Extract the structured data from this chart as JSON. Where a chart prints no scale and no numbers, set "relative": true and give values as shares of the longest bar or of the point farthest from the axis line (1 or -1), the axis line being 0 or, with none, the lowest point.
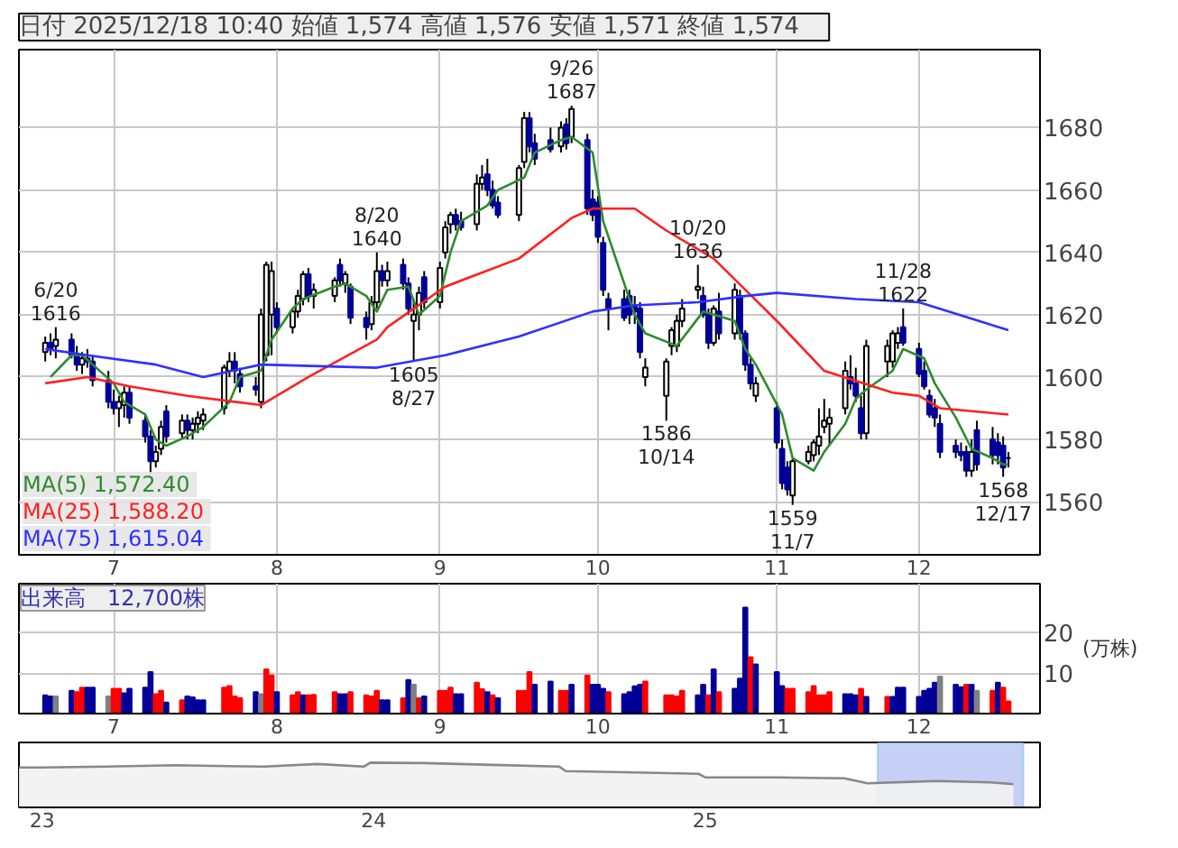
{
  "chart_data": [
    {
      "type": "candlestick",
      "title": "日付 2025/12/18 10:40  始値 1,574  高値 1,576  安値 1,571  終値 1,574",
      "x": [
        "2025-06-18",
        "2025-06-19",
        "2025-06-20",
        "2025-06-23",
        "2025-06-24",
        "2025-06-25",
        "2025-06-26",
        "2025-06-27",
        "2025-06-30",
        "2025-07-01",
        "2025-07-02",
        "2025-07-03",
        "2025-07-04",
        "2025-07-07",
        "2025-07-08",
        "2025-07-09",
        "2025-07-10",
        "2025-07-11",
        "2025-07-14",
        "2025-07-15",
        "2025-07-16",
        "2025-07-17",
        "2025-07-18",
        "2025-07-22",
        "2025-07-23",
        "2025-07-24",
        "2025-07-25",
        "2025-07-28",
        "2025-07-29",
        "2025-07-30",
        "2025-07-31",
        "2025-08-01",
        "2025-08-04",
        "2025-08-05",
        "2025-08-06",
        "2025-08-07",
        "2025-08-08",
        "2025-08-12",
        "2025-08-13",
        "2025-08-14",
        "2025-08-15",
        "2025-08-18",
        "2025-08-19",
        "2025-08-20",
        "2025-08-21",
        "2025-08-22",
        "2025-08-25",
        "2025-08-26",
        "2025-08-27",
        "2025-08-28",
        "2025-08-29",
        "2025-09-01",
        "2025-09-02",
        "2025-09-03",
        "2025-09-04",
        "2025-09-05",
        "2025-09-08",
        "2025-09-09",
        "2025-09-10",
        "2025-09-11",
        "2025-09-12",
        "2025-09-16",
        "2025-09-17",
        "2025-09-18",
        "2025-09-19",
        "2025-09-22",
        "2025-09-24",
        "2025-09-25",
        "2025-09-26",
        "2025-09-29",
        "2025-09-30",
        "2025-10-01",
        "2025-10-02",
        "2025-10-03",
        "2025-10-06",
        "2025-10-07",
        "2025-10-08",
        "2025-10-09",
        "2025-10-10",
        "2025-10-14",
        "2025-10-15",
        "2025-10-16",
        "2025-10-17",
        "2025-10-20",
        "2025-10-21",
        "2025-10-22",
        "2025-10-23",
        "2025-10-24",
        "2025-10-27",
        "2025-10-28",
        "2025-10-29",
        "2025-10-30",
        "2025-10-31",
        "2025-11-04",
        "2025-11-05",
        "2025-11-06",
        "2025-11-07",
        "2025-11-10",
        "2025-11-11",
        "2025-11-12",
        "2025-11-13",
        "2025-11-14",
        "2025-11-17",
        "2025-11-18",
        "2025-11-19",
        "2025-11-20",
        "2025-11-21",
        "2025-11-25",
        "2025-11-26",
        "2025-11-27",
        "2025-11-28",
        "2025-12-01",
        "2025-12-02",
        "2025-12-03",
        "2025-12-04",
        "2025-12-05",
        "2025-12-08",
        "2025-12-09",
        "2025-12-10",
        "2025-12-11",
        "2025-12-12",
        "2025-12-15",
        "2025-12-16",
        "2025-12-17",
        "2025-12-18"
      ],
      "ohlc": [
        [
          1608,
          1613,
          1605,
          1611
        ],
        [
          1611,
          1614,
          1607,
          1609
        ],
        [
          1610,
          1616,
          1606,
          1612
        ],
        [
          1612,
          1614,
          1606,
          1607
        ],
        [
          1607,
          1610,
          1602,
          1604
        ],
        [
          1604,
          1608,
          1601,
          1606
        ],
        [
          1606,
          1609,
          1603,
          1605
        ],
        [
          1605,
          1607,
          1597,
          1599
        ],
        [
          1599,
          1602,
          1590,
          1592
        ],
        [
          1592,
          1596,
          1588,
          1590
        ],
        [
          1590,
          1594,
          1584,
          1592
        ],
        [
          1591,
          1597,
          1587,
          1595
        ],
        [
          1595,
          1597,
          1585,
          1587
        ],
        [
          1586,
          1588,
          1579,
          1581
        ],
        [
          1581,
          1583,
          1569,
          1573
        ],
        [
          1573,
          1578,
          1571,
          1576
        ],
        [
          1577,
          1586,
          1575,
          1584
        ],
        [
          1589,
          1591,
          1579,
          1581
        ],
        [
          1582,
          1588,
          1580,
          1586
        ],
        [
          1586,
          1588,
          1580,
          1583
        ],
        [
          1583,
          1587,
          1580,
          1585
        ],
        [
          1585,
          1589,
          1582,
          1587
        ],
        [
          1586,
          1590,
          1583,
          1588
        ],
        [
          1590,
          1604,
          1588,
          1603
        ],
        [
          1602,
          1608,
          1600,
          1605
        ],
        [
          1605,
          1608,
          1598,
          1602
        ],
        [
          1601,
          1603,
          1595,
          1597
        ],
        [
          1597,
          1600,
          1594,
          1596
        ],
        [
          1592,
          1622,
          1590,
          1620
        ],
        [
          1607,
          1637,
          1605,
          1636
        ],
        [
          1620,
          1637,
          1607,
          1634
        ],
        [
          1622,
          1624,
          1614,
          1616
        ],
        [
          1616,
          1622,
          1614,
          1621
        ],
        [
          1621,
          1628,
          1619,
          1626
        ],
        [
          1625,
          1634,
          1623,
          1633
        ],
        [
          1633,
          1635,
          1624,
          1626
        ],
        [
          1626,
          1630,
          1622,
          1628
        ],
        [
          1626,
          1632,
          1624,
          1631
        ],
        [
          1636,
          1638,
          1629,
          1631
        ],
        [
          1630,
          1634,
          1627,
          1633
        ],
        [
          1629,
          1630,
          1617,
          1619
        ],
        [
          1619,
          1621,
          1612,
          1616
        ],
        [
          1617,
          1626,
          1615,
          1624
        ],
        [
          1624,
          1640,
          1622,
          1634
        ],
        [
          1634,
          1636,
          1629,
          1631
        ],
        [
          1631,
          1637,
          1629,
          1634
        ],
        [
          1636,
          1638,
          1628,
          1630
        ],
        [
          1630,
          1632,
          1620,
          1622
        ],
        [
          1618,
          1625,
          1605,
          1620
        ],
        [
          1620,
          1629,
          1615,
          1627
        ],
        [
          1632,
          1634,
          1622,
          1624
        ],
        [
          1624,
          1637,
          1622,
          1635
        ],
        [
          1640,
          1650,
          1638,
          1648
        ],
        [
          1649,
          1653,
          1646,
          1652
        ],
        [
          1652,
          1654,
          1647,
          1649
        ],
        [
          1650,
          1653,
          1647,
          1648
        ],
        [
          1649,
          1665,
          1647,
          1662
        ],
        [
          1662,
          1668,
          1660,
          1664
        ],
        [
          1665,
          1670,
          1658,
          1660
        ],
        [
          1660,
          1663,
          1654,
          1655
        ],
        [
          1656,
          1658,
          1651,
          1652
        ],
        [
          1652,
          1668,
          1650,
          1667
        ],
        [
          1669,
          1685,
          1667,
          1683
        ],
        [
          1683,
          1685,
          1672,
          1674
        ],
        [
          1675,
          1678,
          1668,
          1670
        ],
        [
          1676,
          1680,
          1672,
          1673
        ],
        [
          1674,
          1682,
          1672,
          1680
        ],
        [
          1681,
          1683,
          1673,
          1675
        ],
        [
          1677,
          1687,
          1675,
          1686
        ],
        [
          1676,
          1678,
          1652,
          1654
        ],
        [
          1657,
          1660,
          1650,
          1652
        ],
        [
          1656,
          1658,
          1643,
          1645
        ],
        [
          1643,
          1645,
          1626,
          1628
        ],
        [
          1625,
          1627,
          1615,
          1622
        ],
        [
          1625,
          1628,
          1618,
          1619
        ],
        [
          1626,
          1628,
          1617,
          1620
        ],
        [
          1623,
          1626,
          1617,
          1621
        ],
        [
          1622,
          1624,
          1606,
          1608
        ],
        [
          1600,
          1606,
          1597,
          1603
        ],
        [
          1594,
          1606,
          1586,
          1605
        ],
        [
          1610,
          1616,
          1607,
          1615
        ],
        [
          1610,
          1620,
          1608,
          1618
        ],
        [
          1618,
          1625,
          1616,
          1622
        ],
        [
          1628,
          1636,
          1625,
          1629
        ],
        [
          1626,
          1629,
          1619,
          1620
        ],
        [
          1620,
          1622,
          1609,
          1611
        ],
        [
          1611,
          1623,
          1610,
          1622
        ],
        [
          1621,
          1627,
          1612,
          1614
        ],
        [
          1614,
          1630,
          1612,
          1628
        ],
        [
          1626,
          1628,
          1612,
          1614
        ],
        [
          1614,
          1615,
          1602,
          1604
        ],
        [
          1604,
          1606,
          1596,
          1598
        ],
        [
          1594,
          1600,
          1592,
          1598
        ],
        [
          1590,
          1592,
          1577,
          1579
        ],
        [
          1577,
          1580,
          1564,
          1566
        ],
        [
          1571,
          1573,
          1562,
          1564
        ],
        [
          1562,
          1574,
          1559,
          1573
        ],
        [
          1573,
          1578,
          1572,
          1576
        ],
        [
          1575,
          1580,
          1573,
          1579
        ],
        [
          1578,
          1590,
          1575,
          1581
        ],
        [
          1584,
          1593,
          1582,
          1586
        ],
        [
          1585,
          1590,
          1578,
          1587
        ],
        [
          1590,
          1605,
          1588,
          1602
        ],
        [
          1600,
          1607,
          1596,
          1598
        ],
        [
          1598,
          1603,
          1592,
          1594
        ],
        [
          1590,
          1594,
          1580,
          1582
        ],
        [
          1582,
          1612,
          1580,
          1610
        ],
        [
          1605,
          1612,
          1600,
          1610
        ],
        [
          1605,
          1615,
          1603,
          1614
        ],
        [
          1611,
          1616,
          1609,
          1614
        ],
        [
          1616,
          1622,
          1610,
          1611
        ],
        [
          1609,
          1611,
          1600,
          1601
        ],
        [
          1602,
          1605,
          1596,
          1597
        ],
        [
          1594,
          1596,
          1587,
          1588
        ],
        [
          1590,
          1593,
          1584,
          1587
        ],
        [
          1585,
          1588,
          1574,
          1576
        ],
        [
          1578,
          1580,
          1574,
          1576
        ],
        [
          1576,
          1579,
          1573,
          1575
        ],
        [
          1576,
          1578,
          1568,
          1570
        ],
        [
          1570,
          1580,
          1568,
          1576
        ],
        [
          1583,
          1586,
          1570,
          1572
        ],
        [
          1580,
          1584,
          1572,
          1575
        ],
        [
          1579,
          1582,
          1572,
          1575
        ],
        [
          1578,
          1581,
          1568,
          1571
        ],
        [
          1574,
          1576,
          1571,
          1574
        ]
      ],
      "series": [
        {
          "type": "line",
          "name": "MA(5)  1,572.40",
          "color": "#2e8b2e",
          "x": [
            "2025-06-19",
            "2025-06-23",
            "2025-06-25",
            "2025-06-27",
            "2025-07-01",
            "2025-07-03",
            "2025-07-07",
            "2025-07-09",
            "2025-07-11",
            "2025-07-15",
            "2025-07-18",
            "2025-07-23",
            "2025-07-25",
            "2025-07-29",
            "2025-07-31",
            "2025-08-04",
            "2025-08-06",
            "2025-08-12",
            "2025-08-14",
            "2025-08-18",
            "2025-08-20",
            "2025-08-22",
            "2025-08-26",
            "2025-08-28",
            "2025-09-01",
            "2025-09-03",
            "2025-09-05",
            "2025-09-10",
            "2025-09-12",
            "2025-09-17",
            "2025-09-19",
            "2025-09-24",
            "2025-09-26",
            "2025-09-30",
            "2025-10-02",
            "2025-10-06",
            "2025-10-08",
            "2025-10-10",
            "2025-10-16",
            "2025-10-21",
            "2025-10-23",
            "2025-10-27",
            "2025-10-29",
            "2025-10-31",
            "2025-11-05",
            "2025-11-07",
            "2025-11-11",
            "2025-11-13",
            "2025-11-17",
            "2025-11-19",
            "2025-11-21",
            "2025-11-26",
            "2025-11-28",
            "2025-12-02",
            "2025-12-04",
            "2025-12-08",
            "2025-12-11",
            "2025-12-15",
            "2025-12-17",
            "2025-12-18"
          ],
          "values": [
            1600,
            1607,
            1607,
            1604,
            1598,
            1592,
            1588,
            1580,
            1578,
            1581,
            1584,
            1592,
            1600,
            1602,
            1612,
            1622,
            1625,
            1629,
            1630,
            1626,
            1621,
            1628,
            1629,
            1620,
            1626,
            1640,
            1650,
            1655,
            1660,
            1664,
            1672,
            1676,
            1677,
            1672,
            1650,
            1630,
            1620,
            1614,
            1610,
            1621,
            1620,
            1618,
            1609,
            1604,
            1588,
            1574,
            1570,
            1576,
            1585,
            1593,
            1596,
            1602,
            1609,
            1606,
            1598,
            1587,
            1577,
            1574,
            1572,
            1572
          ]
        },
        {
          "type": "line",
          "name": "MA(25)  1,588.20",
          "color": "#ff2020",
          "x": [
            "2025-06-18",
            "2025-06-26",
            "2025-07-04",
            "2025-07-15",
            "2025-07-29",
            "2025-08-07",
            "2025-08-20",
            "2025-08-22",
            "2025-09-02",
            "2025-09-16",
            "2025-09-26",
            "2025-09-30",
            "2025-10-08",
            "2025-10-14",
            "2025-10-23",
            "2025-10-29",
            "2025-11-04",
            "2025-11-13",
            "2025-11-26",
            "2025-12-01",
            "2025-12-05",
            "2025-12-18"
          ],
          "values": [
            1598,
            1600,
            1597,
            1594,
            1591,
            1600,
            1612,
            1616,
            1629,
            1638,
            1651,
            1654,
            1654,
            1647,
            1638,
            1628,
            1618,
            1602,
            1595,
            1594,
            1590,
            1588
          ]
        },
        {
          "type": "line",
          "name": "MA(75)  1,615.04",
          "color": "#3030ff",
          "x": [
            "2025-06-18",
            "2025-06-26",
            "2025-07-09",
            "2025-07-18",
            "2025-07-29",
            "2025-08-20",
            "2025-09-02",
            "2025-09-16",
            "2025-09-30",
            "2025-10-08",
            "2025-10-20",
            "2025-10-29",
            "2025-11-04",
            "2025-11-19",
            "2025-12-01",
            "2025-12-18"
          ],
          "values": [
            1609,
            1607,
            1604,
            1600,
            1604,
            1603,
            1607,
            1613,
            1621,
            1623,
            1624,
            1626,
            1627,
            1625,
            1624,
            1615
          ]
        }
      ],
      "annotations": [
        {
          "text": "6/20\n1616",
          "x": "2025-06-20",
          "y": 1616
        },
        {
          "text": "8/20\n1640",
          "x": "2025-08-20",
          "y": 1640
        },
        {
          "text": "1605\n8/27",
          "x": "2025-08-27",
          "y": 1605
        },
        {
          "text": "9/26\n1687",
          "x": "2025-09-26",
          "y": 1687
        },
        {
          "text": "1586\n10/14",
          "x": "2025-10-14",
          "y": 1586
        },
        {
          "text": "10/20\n1636",
          "x": "2025-10-20",
          "y": 1636
        },
        {
          "text": "1559\n11/7",
          "x": "2025-11-07",
          "y": 1559
        },
        {
          "text": "11/28\n1622",
          "x": "2025-11-28",
          "y": 1622
        },
        {
          "text": "1568\n12/17",
          "x": "2025-12-17",
          "y": 1568
        }
      ],
      "xlim": [
        "2025-06-13",
        "2025-12-24"
      ],
      "xticks": [
        {
          "value": "2025-07-01",
          "label": "7"
        },
        {
          "value": "2025-08-01",
          "label": "8"
        },
        {
          "value": "2025-09-01",
          "label": "9"
        },
        {
          "value": "2025-10-01",
          "label": "10"
        },
        {
          "value": "2025-11-04",
          "label": "11"
        },
        {
          "value": "2025-12-01",
          "label": "12"
        }
      ],
      "ylim": [
        1543,
        1705
      ],
      "yticks": [
        1560,
        1580,
        1600,
        1620,
        1640,
        1660,
        1680
      ],
      "grid": true,
      "legend": "bottom left"
    },
    {
      "type": "bar",
      "annotations": [
        "出来高　12,700株"
      ],
      "ylabel": "(万株)",
      "x": [
        "2025-06-18",
        "2025-06-19",
        "2025-06-20",
        "2025-06-23",
        "2025-06-24",
        "2025-06-25",
        "2025-06-26",
        "2025-06-27",
        "2025-06-30",
        "2025-07-01",
        "2025-07-02",
        "2025-07-03",
        "2025-07-04",
        "2025-07-07",
        "2025-07-08",
        "2025-07-09",
        "2025-07-10",
        "2025-07-11",
        "2025-07-14",
        "2025-07-15",
        "2025-07-16",
        "2025-07-17",
        "2025-07-18",
        "2025-07-22",
        "2025-07-23",
        "2025-07-24",
        "2025-07-25",
        "2025-07-28",
        "2025-07-29",
        "2025-07-30",
        "2025-07-31",
        "2025-08-01",
        "2025-08-04",
        "2025-08-05",
        "2025-08-06",
        "2025-08-07",
        "2025-08-08",
        "2025-08-12",
        "2025-08-13",
        "2025-08-14",
        "2025-08-15",
        "2025-08-18",
        "2025-08-19",
        "2025-08-20",
        "2025-08-21",
        "2025-08-22",
        "2025-08-25",
        "2025-08-26",
        "2025-08-27",
        "2025-08-28",
        "2025-08-29",
        "2025-09-01",
        "2025-09-02",
        "2025-09-03",
        "2025-09-04",
        "2025-09-05",
        "2025-09-08",
        "2025-09-09",
        "2025-09-10",
        "2025-09-11",
        "2025-09-12",
        "2025-09-16",
        "2025-09-17",
        "2025-09-18",
        "2025-09-19",
        "2025-09-22",
        "2025-09-24",
        "2025-09-25",
        "2025-09-26",
        "2025-09-29",
        "2025-09-30",
        "2025-10-01",
        "2025-10-02",
        "2025-10-03",
        "2025-10-06",
        "2025-10-07",
        "2025-10-08",
        "2025-10-09",
        "2025-10-10",
        "2025-10-14",
        "2025-10-15",
        "2025-10-16",
        "2025-10-17",
        "2025-10-20",
        "2025-10-21",
        "2025-10-22",
        "2025-10-23",
        "2025-10-24",
        "2025-10-27",
        "2025-10-28",
        "2025-10-29",
        "2025-10-30",
        "2025-10-31",
        "2025-11-04",
        "2025-11-05",
        "2025-11-06",
        "2025-11-07",
        "2025-11-10",
        "2025-11-11",
        "2025-11-12",
        "2025-11-13",
        "2025-11-14",
        "2025-11-17",
        "2025-11-18",
        "2025-11-19",
        "2025-11-20",
        "2025-11-21",
        "2025-11-25",
        "2025-11-26",
        "2025-11-27",
        "2025-11-28",
        "2025-12-01",
        "2025-12-02",
        "2025-12-03",
        "2025-12-04",
        "2025-12-05",
        "2025-12-08",
        "2025-12-09",
        "2025-12-10",
        "2025-12-11",
        "2025-12-12",
        "2025-12-15",
        "2025-12-16",
        "2025-12-17",
        "2025-12-18"
      ],
      "values": [
        4.5,
        4.2,
        4.2,
        5.6,
        5.3,
        6.4,
        6.4,
        6.4,
        4.2,
        6.1,
        6.1,
        5.0,
        6.1,
        6.4,
        10.2,
        4.8,
        5.6,
        2.7,
        3.3,
        4.2,
        4.0,
        3.3,
        3.3,
        6.4,
        6.8,
        4.2,
        3.8,
        5.3,
        4.8,
        10.9,
        9.4,
        5.3,
        4.5,
        5.3,
        4.5,
        4.5,
        4.6,
        5.3,
        4.8,
        4.8,
        5.3,
        4.5,
        4.2,
        5.6,
        3.3,
        3.3,
        3.8,
        8.3,
        7.1,
        3.8,
        4.2,
        5.6,
        5.6,
        6.4,
        4.8,
        4.8,
        7.6,
        6.0,
        5.3,
        4.5,
        3.8,
        5.6,
        5.6,
        10.2,
        7.1,
        7.9,
        5.6,
        5.6,
        7.1,
        9.4,
        7.1,
        7.1,
        6.1,
        5.3,
        4.8,
        5.3,
        6.7,
        7.1,
        7.9,
        4.5,
        4.5,
        4.2,
        5.6,
        4.5,
        7.1,
        4.5,
        10.9,
        5.3,
        6.1,
        8.6,
        26.1,
        13.9,
        12.1,
        10.2,
        6.8,
        6.1,
        6.1,
        5.3,
        6.8,
        4.5,
        4.5,
        5.3,
        4.8,
        4.8,
        4.5,
        6.1,
        4.1,
        4.1,
        4.1,
        6.4,
        6.4,
        4.1,
        5.6,
        6.1,
        7.6,
        9.1,
        7.1,
        6.5,
        7.1,
        7.1,
        5.6,
        5.6,
        7.6,
        6.4,
        3.0
      ],
      "colors": [
        "#000099",
        "#000099",
        "#808080",
        "#000099",
        "#ff0000",
        "#ff0000",
        "#000099",
        "#000099",
        "#808080",
        "#ff0000",
        "#ff0000",
        "#000099",
        "#000099",
        "#000099",
        "#000099",
        "#ff0000",
        "#ff0000",
        "#000099",
        "#ff0000",
        "#000099",
        "#000099",
        "#000099",
        "#000099",
        "#ff0000",
        "#ff0000",
        "#ff0000",
        "#ff0000",
        "#000099",
        "#808080",
        "#ff0000",
        "#ff0000",
        "#000099",
        "#ff0000",
        "#ff0000",
        "#000099",
        "#ff0000",
        "#ff0000",
        "#ff0000",
        "#000099",
        "#000099",
        "#ff0000",
        "#ff0000",
        "#ff0000",
        "#ff0000",
        "#000099",
        "#000099",
        "#ff0000",
        "#000099",
        "#808080",
        "#ff0000",
        "#000099",
        "#ff0000",
        "#ff0000",
        "#ff0000",
        "#000099",
        "#000099",
        "#ff0000",
        "#ff0000",
        "#000099",
        "#ff0000",
        "#000099",
        "#ff0000",
        "#ff0000",
        "#ff0000",
        "#000099",
        "#000099",
        "#ff0000",
        "#ff0000",
        "#000099",
        "#ff0000",
        "#000099",
        "#000099",
        "#000099",
        "#ff0000",
        "#000099",
        "#000099",
        "#000099",
        "#000099",
        "#ff0000",
        "#ff0000",
        "#ff0000",
        "#ff0000",
        "#ff0000",
        "#000099",
        "#000099",
        "#ff0000",
        "#000099",
        "#ff0000",
        "#000099",
        "#000099",
        "#000099",
        "#ff0000",
        "#000099",
        "#000099",
        "#000099",
        "#ff0000",
        "#ff0000",
        "#ff0000",
        "#ff0000",
        "#ff0000",
        "#ff0000",
        "#ff0000",
        "#000099",
        "#000099",
        "#000099",
        "#ff0000",
        "#000099",
        "#ff0000",
        "#000099",
        "#000099",
        "#000099",
        "#000099",
        "#000099",
        "#000099",
        "#000099",
        "#808080",
        "#000099",
        "#000099",
        "#ff0000",
        "#000099",
        "#808080",
        "#ff0000",
        "#000099",
        "#ff0000",
        "#ff0000"
      ],
      "xlim": [
        "2025-06-13",
        "2025-12-24"
      ],
      "xticks": [
        {
          "value": "2025-07-01",
          "label": "7"
        },
        {
          "value": "2025-08-01",
          "label": "8"
        },
        {
          "value": "2025-09-01",
          "label": "9"
        },
        {
          "value": "2025-10-01",
          "label": "10"
        },
        {
          "value": "2025-11-04",
          "label": "11"
        },
        {
          "value": "2025-12-01",
          "label": "12"
        }
      ],
      "ylim": [
        0,
        32
      ],
      "yticks": [
        10,
        20
      ],
      "grid": true
    },
    {
      "type": "area",
      "relative": true,
      "tick_labels": "x",
      "series": [
        {
          "color": "#888888",
          "x": [
            22.93,
            23.0,
            23.19,
            23.4,
            23.67,
            23.83,
            23.97,
            23.99,
            24.15,
            24.36,
            24.56,
            24.58,
            24.79,
            24.98,
            25.0,
            25.22,
            25.42,
            25.49,
            25.7,
            25.86,
            25.93
          ],
          "values": [
            0.89,
            0.89,
            0.91,
            0.94,
            0.91,
            0.97,
            0.91,
            1.0,
            0.99,
            0.95,
            0.91,
            0.81,
            0.78,
            0.75,
            0.67,
            0.67,
            0.65,
            0.54,
            0.59,
            0.56,
            0.52
          ]
        }
      ],
      "bands": [
        {
          "axis": "x",
          "from": 25.52,
          "to": 25.96,
          "color": "#b8c4f4"
        }
      ],
      "xlim": [
        22.93,
        26.01
      ],
      "xticks": [
        23,
        24,
        25
      ]
    }
  ]
}
